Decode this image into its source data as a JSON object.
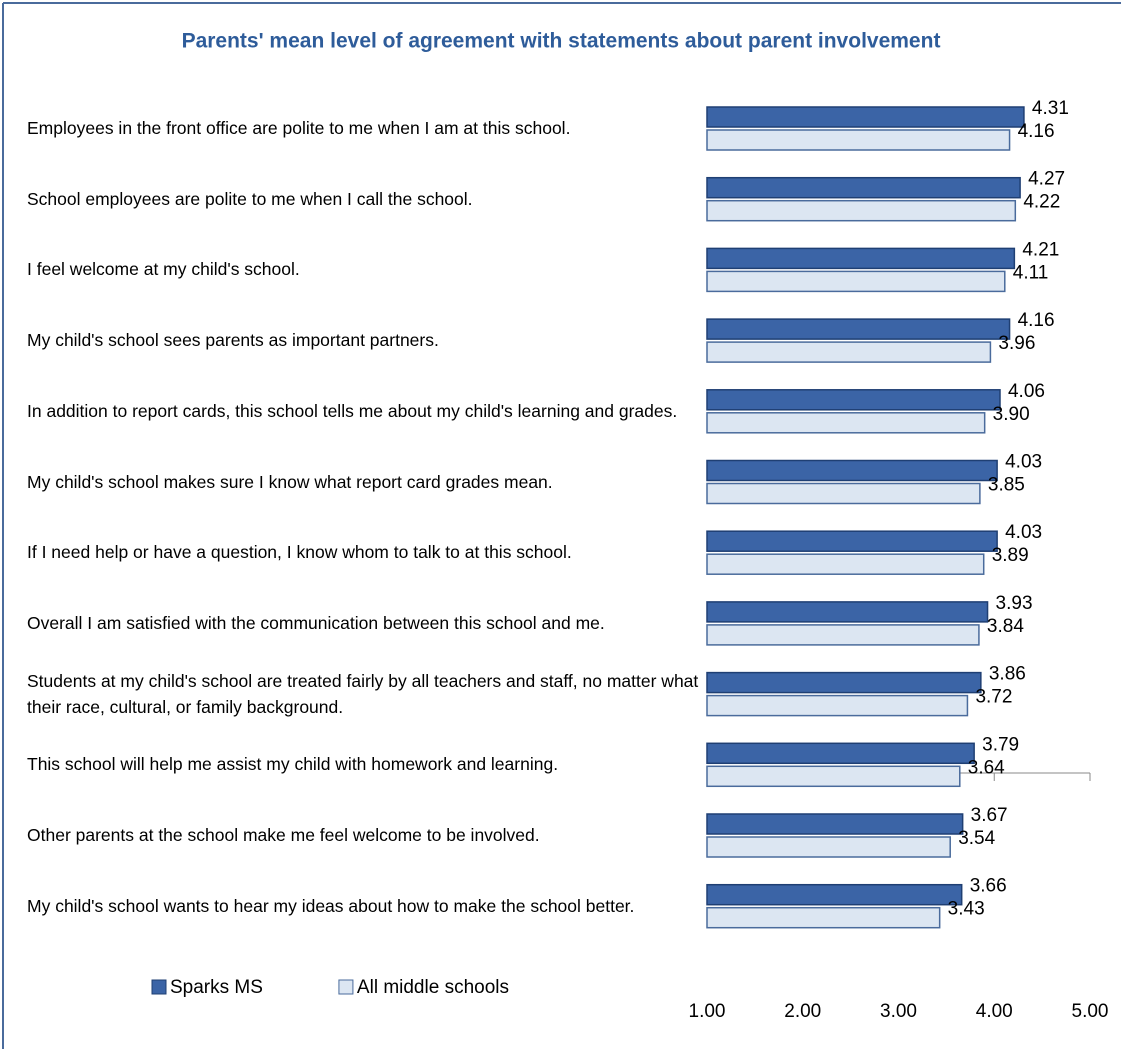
{
  "chart_data": {
    "type": "bar",
    "orientation": "horizontal",
    "title": "Parents' mean level of agreement with statements about parent involvement",
    "categories": [
      "Employees in the front office are polite to me when I am at this school.",
      "School employees are polite to me when I call the school.",
      "I feel welcome at my child's school.",
      "My child's school sees parents as important partners.",
      "In addition to report cards, this school tells me about my child's learning and grades.",
      "My child's school makes sure I know what report card grades mean.",
      "If I need help or have a question, I know whom to talk to at this school.",
      "Overall I am satisfied with the communication between this school and me.",
      "Students at my child's school are treated fairly by all teachers and staff, no matter what their race, cultural, or family background.",
      "This school will help me assist my child with homework and learning.",
      "Other parents at the school make me feel welcome to be involved.",
      "My child's school wants to hear my ideas about how to make the school better."
    ],
    "series": [
      {
        "name": "Sparks MS",
        "color": "#3b64a6",
        "values": [
          4.31,
          4.27,
          4.21,
          4.16,
          4.06,
          4.03,
          4.03,
          3.93,
          3.86,
          3.79,
          3.67,
          3.66
        ],
        "value_labels": [
          "4.31",
          "4.27",
          "4.21",
          "4.16",
          "4.06",
          "4.03",
          "4.03",
          "3.93",
          "3.86",
          "3.79",
          "3.67",
          "3.66"
        ]
      },
      {
        "name": "All middle schools",
        "color": "#dce6f2",
        "values": [
          4.16,
          4.22,
          4.11,
          3.96,
          3.9,
          3.85,
          3.89,
          3.84,
          3.72,
          3.64,
          3.54,
          3.43
        ],
        "value_labels": [
          "4.16",
          "4.22",
          "4.11",
          "3.96",
          "3.90",
          "3.85",
          "3.89",
          "3.84",
          "3.72",
          "3.64",
          "3.54",
          "3.43"
        ]
      }
    ],
    "xlim": [
      1,
      5
    ],
    "xticks": [
      {
        "value": 1,
        "label": "1.00"
      },
      {
        "value": 2,
        "label": "2.00"
      },
      {
        "value": 3,
        "label": "3.00"
      },
      {
        "value": 4,
        "label": "4.00"
      },
      {
        "value": 5,
        "label": "5.00"
      }
    ],
    "legend": "bottom-left"
  }
}
